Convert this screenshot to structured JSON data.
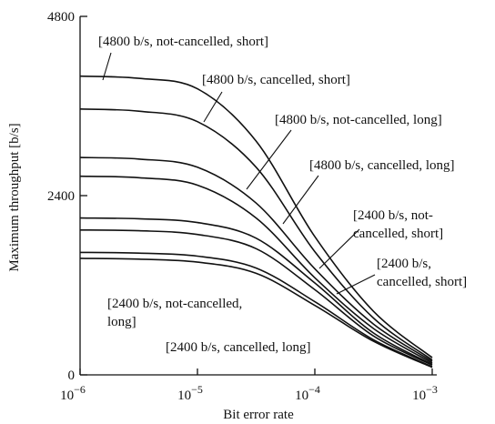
{
  "chart_data": {
    "type": "line",
    "xscale": "log",
    "xlim": [
      1e-06,
      0.001
    ],
    "ylim": [
      0,
      4800
    ],
    "xlabel": "Bit error rate",
    "ylabel": "Maximum throughput [b/s]",
    "xticks": [
      {
        "value": 1e-06,
        "base": "10",
        "exp": "−6"
      },
      {
        "value": 1e-05,
        "base": "10",
        "exp": "−5"
      },
      {
        "value": 0.0001,
        "base": "10",
        "exp": "−4"
      },
      {
        "value": 0.001,
        "base": "10",
        "exp": "−3"
      }
    ],
    "yticks": [
      {
        "value": 0,
        "label": "0"
      },
      {
        "value": 2400,
        "label": "2400"
      },
      {
        "value": 4800,
        "label": "4800"
      }
    ],
    "x": [
      1e-06,
      3.16e-06,
      1e-05,
      3.16e-05,
      0.0001,
      0.000316,
      0.001
    ],
    "series": [
      {
        "name": "[4800 b/s, not-cancelled, short]",
        "values": [
          4000,
          3970,
          3830,
          3130,
          1850,
          850,
          230
        ]
      },
      {
        "name": "[4800 b/s, cancelled, short]",
        "values": [
          3560,
          3530,
          3390,
          2780,
          1650,
          760,
          200
        ]
      },
      {
        "name": "[4800 b/s, not-cancelled, long]",
        "values": [
          2910,
          2890,
          2780,
          2300,
          1420,
          680,
          180
        ]
      },
      {
        "name": "[4800 b/s, cancelled, long]",
        "values": [
          2660,
          2640,
          2540,
          2100,
          1300,
          620,
          160
        ]
      },
      {
        "name": "[2400 b/s, not-cancelled, short]",
        "values": [
          2100,
          2090,
          2040,
          1830,
          1230,
          560,
          140
        ]
      },
      {
        "name": "[2400 b/s, cancelled, short]",
        "values": [
          1940,
          1930,
          1880,
          1690,
          1140,
          520,
          130
        ]
      },
      {
        "name": "[2400 b/s, not-cancelled, long]",
        "values": [
          1640,
          1630,
          1590,
          1430,
          980,
          470,
          110
        ]
      },
      {
        "name": "[2400 b/s, cancelled, long]",
        "values": [
          1560,
          1550,
          1510,
          1360,
          930,
          450,
          100
        ]
      }
    ],
    "annotations": [
      {
        "lines": [
          "[4800 b/s, not-cancelled, short]"
        ]
      },
      {
        "lines": [
          "[4800 b/s, cancelled, short]"
        ]
      },
      {
        "lines": [
          "[4800 b/s, not-cancelled, long]"
        ]
      },
      {
        "lines": [
          "[4800 b/s, cancelled, long]"
        ]
      },
      {
        "lines": [
          "[2400 b/s, not-",
          "cancelled, short]"
        ]
      },
      {
        "lines": [
          "[2400 b/s,",
          "cancelled, short]"
        ]
      },
      {
        "lines": [
          "[2400 b/s, not-cancelled,",
          "long]"
        ]
      },
      {
        "lines": [
          "[2400 b/s, cancelled, long]"
        ]
      }
    ]
  }
}
